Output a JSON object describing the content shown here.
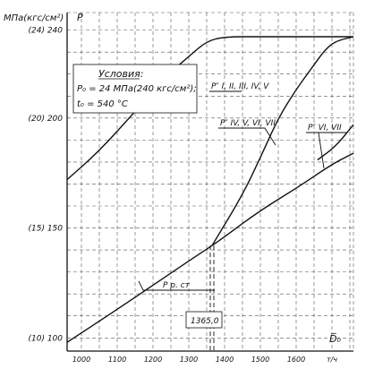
{
  "chart_data": {
    "type": "line",
    "ylabel_units": "МПа(кгс/см²)",
    "ylabel_symbol": "P",
    "xlabel_symbol": "D̅₀",
    "xlabel_units": "т/ч",
    "xlim": [
      960,
      1760
    ],
    "ylim": [
      94,
      248
    ],
    "x_ticks": [
      {
        "value": 1000,
        "label": "1000"
      },
      {
        "value": 1100,
        "label": "1100"
      },
      {
        "value": 1200,
        "label": "1200"
      },
      {
        "value": 1300,
        "label": "1300"
      },
      {
        "value": 1400,
        "label": "1400"
      },
      {
        "value": 1500,
        "label": "1500"
      },
      {
        "value": 1600,
        "label": "1600"
      },
      {
        "value": 1700,
        "label": "т/ч"
      }
    ],
    "y_ticks": [
      {
        "value": 100,
        "label": "(10) 100"
      },
      {
        "value": 150,
        "label": "(15) 150"
      },
      {
        "value": 200,
        "label": "(20) 200"
      },
      {
        "value": 240,
        "label": "(24) 240"
      }
    ],
    "conditions": {
      "title": "Условия:",
      "line1": "P₀ = 24 МПа(240 кгс/см²);",
      "line2": "t₀ = 540 °C"
    },
    "series": [
      {
        "name": "P″ I, II, III, IV, V",
        "x": [
          960,
          1050,
          1150,
          1250,
          1300,
          1350,
          1400,
          1500,
          1600,
          1660,
          1700,
          1760
        ],
        "y": [
          172,
          185,
          203,
          221,
          228,
          235,
          237,
          237,
          237,
          237,
          237,
          237
        ]
      },
      {
        "name": "P″ IV, V, VI, VII",
        "x": [
          1365,
          1450,
          1500,
          1550,
          1600,
          1640,
          1680,
          1710,
          1760
        ],
        "y": [
          142,
          165,
          182,
          200,
          213,
          222,
          231,
          235,
          237
        ]
      },
      {
        "name": "P″ VI, VII",
        "x": [
          1660,
          1710,
          1760
        ],
        "y": [
          181,
          187,
          197
        ]
      },
      {
        "name": "P р. ст",
        "x": [
          960,
          1100,
          1200,
          1300,
          1365,
          1400,
          1500,
          1600,
          1700,
          1760
        ],
        "y": [
          98,
          113,
          124,
          135,
          142,
          146,
          158,
          168,
          179,
          184
        ]
      }
    ],
    "annotations": [
      {
        "label": "1365,0",
        "x": 1365
      }
    ],
    "grid": true
  }
}
